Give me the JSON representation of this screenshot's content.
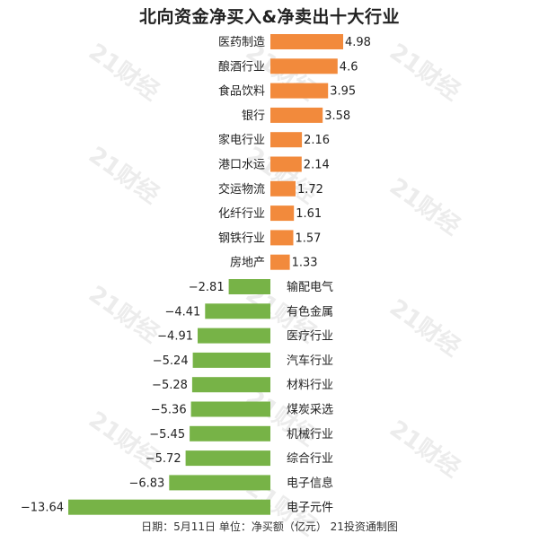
{
  "title": "北向资金净买入&净卖出十大行业",
  "footer": "日期：5月11日  单位：净买额（亿元）  21投资通制图",
  "watermark": "21财经",
  "colors": {
    "positive": "#F28A3C",
    "negative": "#77B347"
  },
  "chart_data": {
    "type": "bar",
    "orientation": "horizontal",
    "title": "北向资金净买入&净卖出十大行业",
    "categories": [
      "医药制造",
      "酿酒行业",
      "食品饮料",
      "银行",
      "家电行业",
      "港口水运",
      "交运物流",
      "化纤行业",
      "钢铁行业",
      "房地产",
      "输配电气",
      "有色金属",
      "医疗行业",
      "汽车行业",
      "材料行业",
      "煤炭采选",
      "机械行业",
      "综合行业",
      "电子信息",
      "电子元件"
    ],
    "values": [
      4.98,
      4.6,
      3.95,
      3.58,
      2.16,
      2.14,
      1.72,
      1.61,
      1.57,
      1.33,
      -2.81,
      -4.41,
      -4.91,
      -5.24,
      -5.28,
      -5.36,
      -5.45,
      -5.72,
      -6.83,
      -13.64
    ],
    "value_labels": [
      "4.98",
      "4.6",
      "3.95",
      "3.58",
      "2.16",
      "2.14",
      "1.72",
      "1.61",
      "1.57",
      "1.33",
      "−2.81",
      "−4.41",
      "−4.91",
      "−5.24",
      "−5.28",
      "−5.36",
      "−5.45",
      "−5.72",
      "−6.83",
      "−13.64"
    ],
    "xlim": [
      -13.64,
      4.98
    ],
    "grid": false,
    "legend": "none"
  }
}
